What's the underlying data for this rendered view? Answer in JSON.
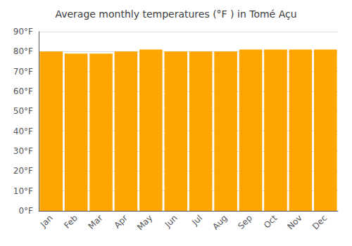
{
  "chart_data": {
    "type": "bar",
    "title": "Average monthly temperatures (°F ) in Tomé Açu",
    "categories": [
      "Jan",
      "Feb",
      "Mar",
      "Apr",
      "May",
      "Jun",
      "Jul",
      "Aug",
      "Sep",
      "Oct",
      "Nov",
      "Dec"
    ],
    "values": [
      80,
      79,
      79,
      80,
      81,
      80,
      80,
      80,
      81,
      81,
      81,
      81
    ],
    "color": "#FFA500",
    "ylim": [
      0,
      90
    ],
    "yticks": [
      {
        "value": 0,
        "label": "0°F"
      },
      {
        "value": 10,
        "label": "10°F"
      },
      {
        "value": 20,
        "label": "20°F"
      },
      {
        "value": 30,
        "label": "30°F"
      },
      {
        "value": 40,
        "label": "40°F"
      },
      {
        "value": 50,
        "label": "50°F"
      },
      {
        "value": 60,
        "label": "60°F"
      },
      {
        "value": 70,
        "label": "70°F"
      },
      {
        "value": 80,
        "label": "80°F"
      },
      {
        "value": 90,
        "label": "90°F"
      }
    ],
    "grid": true
  }
}
